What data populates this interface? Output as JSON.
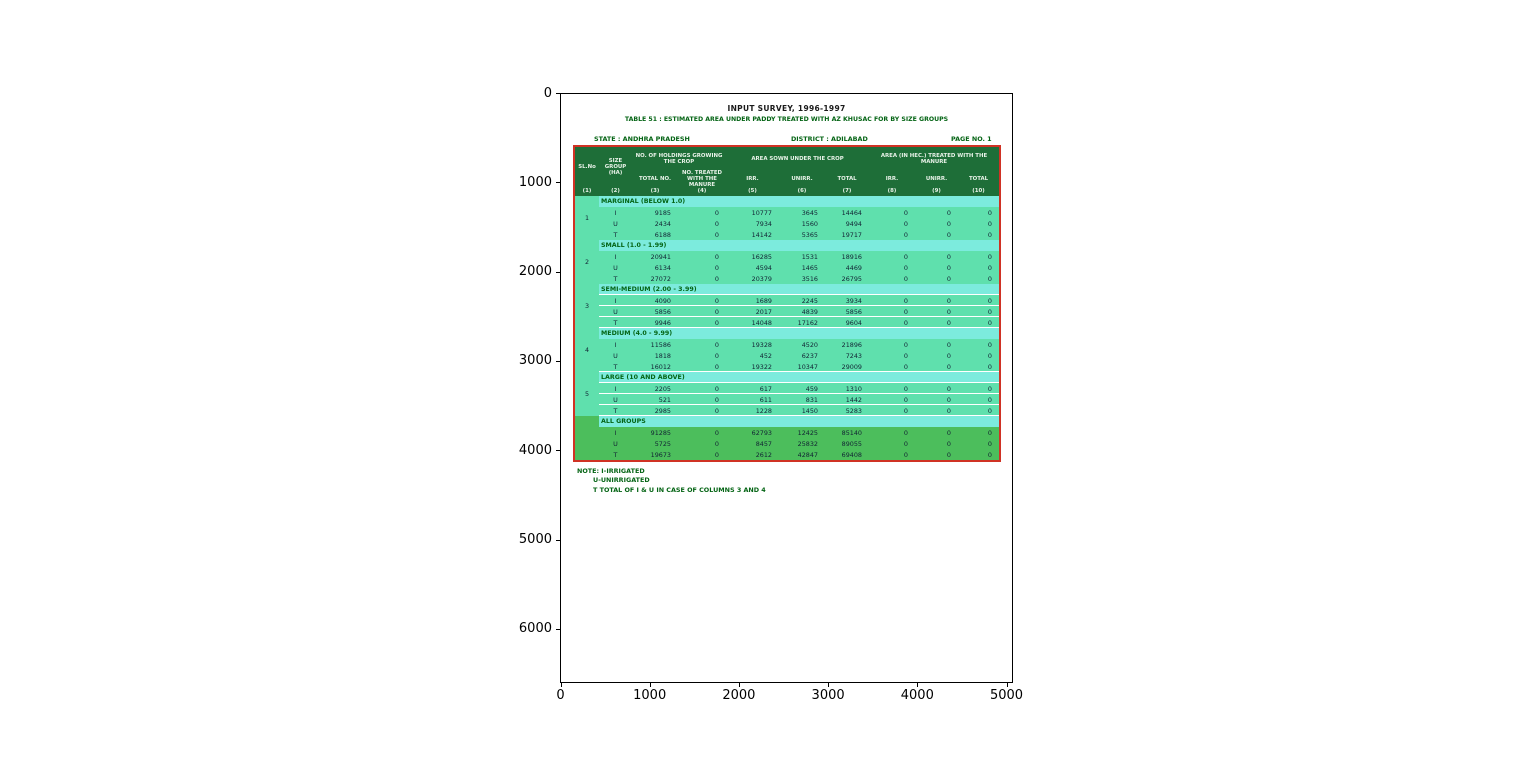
{
  "colors": {
    "header_green": "#1E6E38",
    "band_cyan": "#7CEBDD",
    "row_seafoam": "#5FE0AD",
    "all_groups_green": "#4CBE5C",
    "table_border_red": "#D03224",
    "doc_green_text": "#046414",
    "title_black": "#1a1a1a"
  },
  "chart_data": {
    "type": "table",
    "title": "INPUT SURVEY, 1996-1997",
    "subtitle": "TABLE 51 : ESTIMATED AREA UNDER PADDY TREATED WITH AZ KHUSAC FOR BY SIZE GROUPS",
    "meta": {
      "state": "STATE : ANDHRA PRADESH",
      "district": "DISTRICT : ADILABAD",
      "page": "PAGE NO. 1"
    },
    "x_ticks": [
      "0",
      "1000",
      "2000",
      "3000",
      "4000",
      "5000"
    ],
    "y_ticks": [
      "0",
      "1000",
      "2000",
      "3000",
      "4000",
      "5000",
      "6000"
    ],
    "xlim": [
      0,
      5000
    ],
    "ylim_top_to_bottom": [
      0,
      6600
    ],
    "grid": false,
    "legend": "none",
    "table": {
      "column_groups": [
        {
          "label": "SL.No",
          "cols": [
            1,
            1
          ]
        },
        {
          "label": "SIZE GROUP (HA)",
          "cols": [
            2,
            2
          ]
        },
        {
          "label": "NO. OF HOLDINGS GROWING THE CROP",
          "cols": [
            3,
            4
          ]
        },
        {
          "label": "AREA SOWN UNDER THE CROP",
          "cols": [
            5,
            7
          ]
        },
        {
          "label": "AREA (IN HEC.) TREATED WITH THE MANURE",
          "cols": [
            8,
            10
          ]
        }
      ],
      "sub_columns": [
        {
          "col": 3,
          "label": "TOTAL NO."
        },
        {
          "col": 4,
          "label": "NO. TREATED WITH THE MANURE"
        },
        {
          "col": 5,
          "label": "IRR."
        },
        {
          "col": 6,
          "label": "UNIRR."
        },
        {
          "col": 7,
          "label": "TOTAL"
        },
        {
          "col": 8,
          "label": "IRR."
        },
        {
          "col": 9,
          "label": "UNIRR."
        },
        {
          "col": 10,
          "label": "TOTAL"
        }
      ],
      "column_numbers": [
        "(1)",
        "(2)",
        "(3)",
        "(4)",
        "(5)",
        "(6)",
        "(7)",
        "(8)",
        "(9)",
        "(10)"
      ],
      "row_codes_legend": [
        "I",
        "U",
        "T"
      ],
      "groups": [
        {
          "sl": "1",
          "label": "MARGINAL (BELOW 1.0)",
          "all_groups": false,
          "row_separators": false,
          "separator_after": false,
          "rows": [
            {
              "code": "I",
              "values": [
                "9185",
                "0",
                "10777",
                "3645",
                "14464",
                "0",
                "0",
                "0"
              ]
            },
            {
              "code": "U",
              "values": [
                "2434",
                "0",
                "7934",
                "1560",
                "9494",
                "0",
                "0",
                "0"
              ]
            },
            {
              "code": "T",
              "values": [
                "6188",
                "0",
                "14142",
                "5365",
                "19717",
                "0",
                "0",
                "0"
              ]
            }
          ]
        },
        {
          "sl": "2",
          "label": "SMALL (1.0 - 1.99)",
          "all_groups": false,
          "row_separators": false,
          "separator_after": false,
          "rows": [
            {
              "code": "I",
              "values": [
                "20941",
                "0",
                "16285",
                "1531",
                "18916",
                "0",
                "0",
                "0"
              ]
            },
            {
              "code": "U",
              "values": [
                "6134",
                "0",
                "4594",
                "1465",
                "4469",
                "0",
                "0",
                "0"
              ]
            },
            {
              "code": "T",
              "values": [
                "27072",
                "0",
                "20379",
                "3516",
                "26795",
                "0",
                "0",
                "0"
              ]
            }
          ]
        },
        {
          "sl": "3",
          "label": "SEMI-MEDIUM (2.00 - 3.99)",
          "all_groups": false,
          "row_separators": true,
          "separator_after": false,
          "rows": [
            {
              "code": "I",
              "values": [
                "4090",
                "0",
                "1689",
                "2245",
                "3934",
                "0",
                "0",
                "0"
              ]
            },
            {
              "code": "U",
              "values": [
                "5856",
                "0",
                "2017",
                "4839",
                "5856",
                "0",
                "0",
                "0"
              ]
            },
            {
              "code": "T",
              "values": [
                "9946",
                "0",
                "14048",
                "17162",
                "9604",
                "0",
                "0",
                "0"
              ]
            }
          ]
        },
        {
          "sl": "4",
          "label": "MEDIUM (4.0 - 9.99)",
          "all_groups": false,
          "row_separators": false,
          "separator_after": true,
          "rows": [
            {
              "code": "I",
              "values": [
                "11586",
                "0",
                "19328",
                "4520",
                "21896",
                "0",
                "0",
                "0"
              ]
            },
            {
              "code": "U",
              "values": [
                "1818",
                "0",
                "452",
                "6237",
                "7243",
                "0",
                "0",
                "0"
              ]
            },
            {
              "code": "T",
              "values": [
                "16012",
                "0",
                "19322",
                "10347",
                "29009",
                "0",
                "0",
                "0"
              ]
            }
          ]
        },
        {
          "sl": "5",
          "label": "LARGE (10 AND ABOVE)",
          "all_groups": false,
          "row_separators": true,
          "separator_after": false,
          "rows": [
            {
              "code": "I",
              "values": [
                "2205",
                "0",
                "617",
                "459",
                "1310",
                "0",
                "0",
                "0"
              ]
            },
            {
              "code": "U",
              "values": [
                "521",
                "0",
                "611",
                "831",
                "1442",
                "0",
                "0",
                "0"
              ]
            },
            {
              "code": "T",
              "values": [
                "2985",
                "0",
                "1228",
                "1450",
                "5283",
                "0",
                "0",
                "0"
              ]
            }
          ]
        },
        {
          "sl": "",
          "label": "ALL GROUPS",
          "all_groups": true,
          "row_separators": false,
          "separator_after": false,
          "rows": [
            {
              "code": "I",
              "values": [
                "91285",
                "0",
                "62793",
                "12425",
                "85140",
                "0",
                "0",
                "0"
              ]
            },
            {
              "code": "U",
              "values": [
                "5725",
                "0",
                "8457",
                "25832",
                "89055",
                "0",
                "0",
                "0"
              ]
            },
            {
              "code": "T",
              "values": [
                "19673",
                "0",
                "2612",
                "42847",
                "69408",
                "0",
                "0",
                "0"
              ]
            }
          ]
        }
      ],
      "notes": [
        "NOTE: I-IRRIGATED",
        "U-UNIRRIGATED",
        "T   TOTAL OF I & U IN CASE OF COLUMNS 3 AND 4"
      ]
    }
  }
}
